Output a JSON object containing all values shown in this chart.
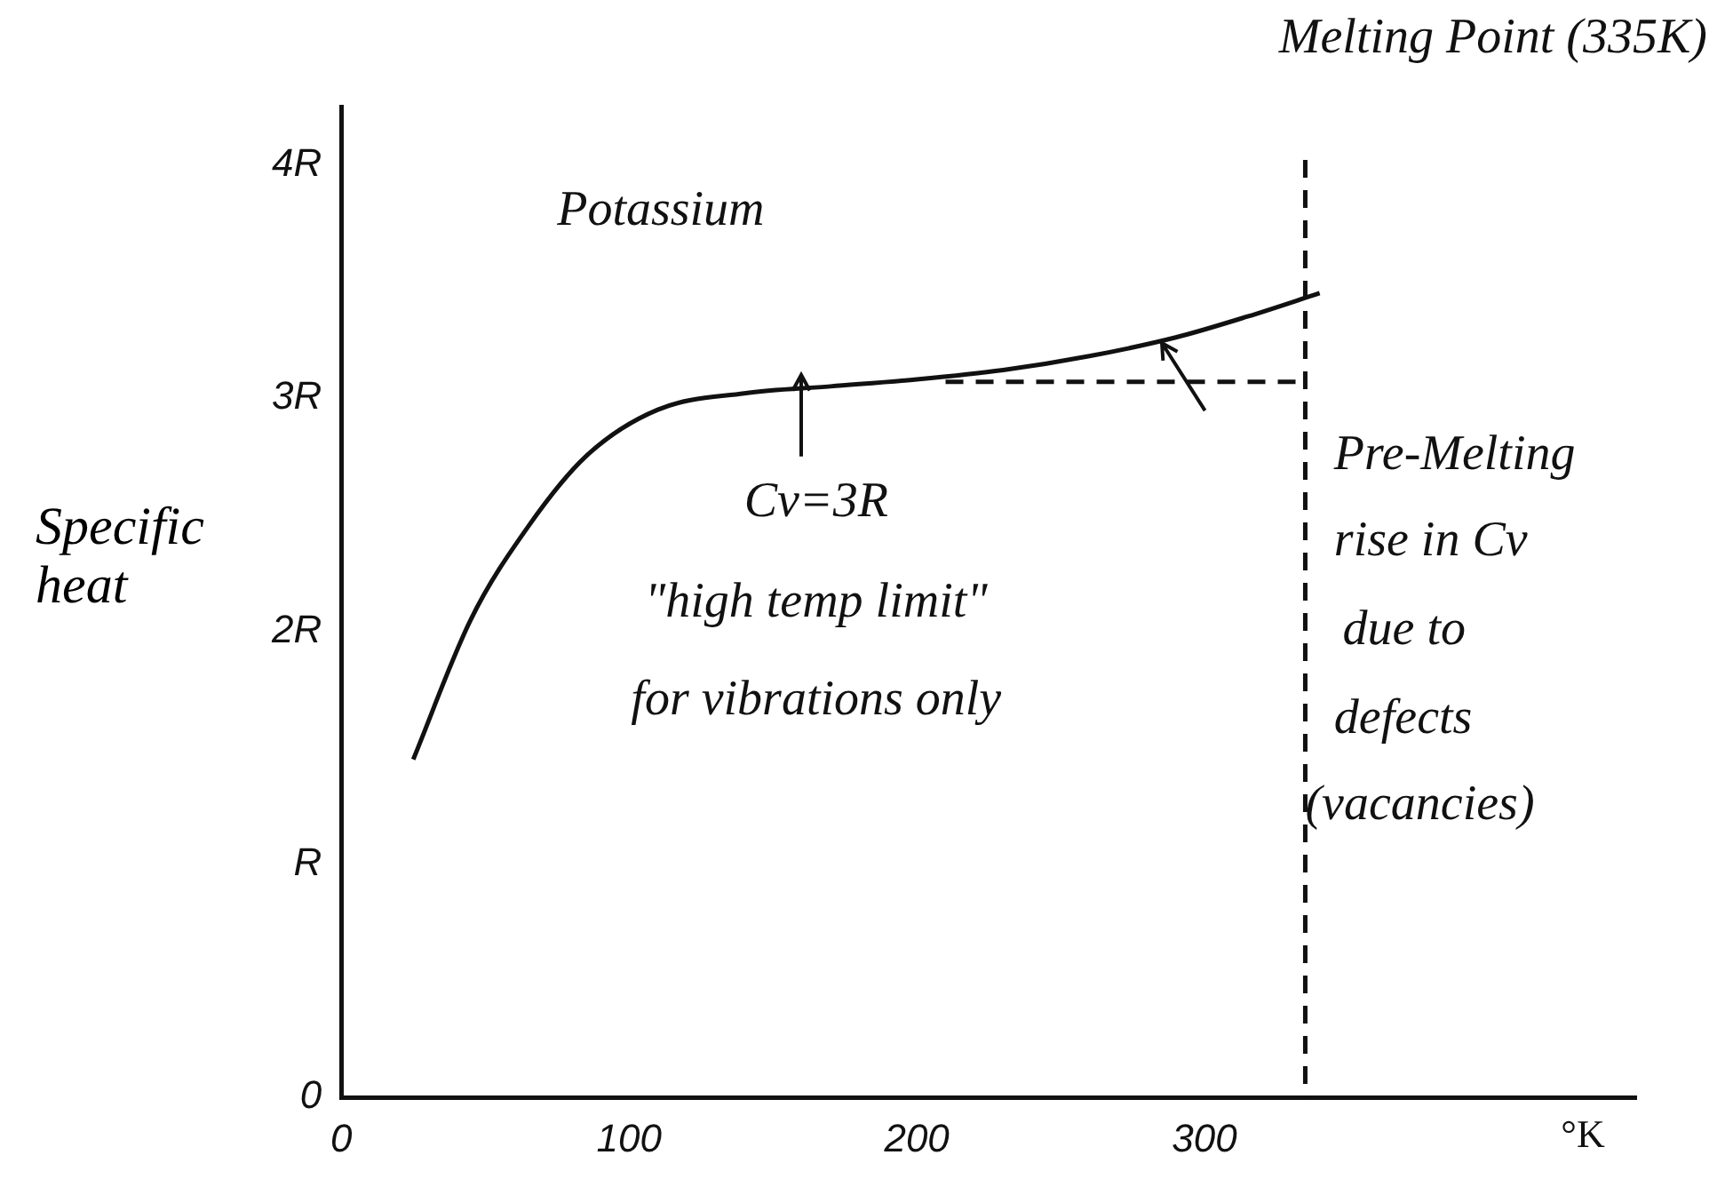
{
  "chart_data": {
    "type": "line",
    "xlabel": "°K",
    "ylabel": "Specific heat",
    "x": [
      25,
      45,
      65,
      85,
      110,
      140,
      170,
      200,
      230,
      260,
      290,
      315,
      340
    ],
    "series": [
      {
        "color": "#111111",
        "values": [
          1.45,
          2.05,
          2.45,
          2.75,
          2.95,
          3.02,
          3.05,
          3.08,
          3.12,
          3.18,
          3.26,
          3.35,
          3.45
        ]
      },
      {
        "type": "line",
        "line_style": "dashed",
        "color": "#111111",
        "x": [
          210,
          335
        ],
        "values": [
          3.07,
          3.07
        ]
      }
    ],
    "xlim": [
      0,
      450
    ],
    "ylim": [
      0,
      4.25
    ],
    "xticks": [
      0,
      100,
      200,
      300
    ],
    "yticks": [
      0,
      {
        "value": 1,
        "label": "R"
      },
      {
        "value": 2,
        "label": "2R"
      },
      {
        "value": 3,
        "label": "3R"
      },
      {
        "value": 4,
        "label": "4R"
      }
    ],
    "ref_lines": [
      {
        "axis": "x",
        "value": 335,
        "label": "Melting Point (335K)",
        "line_style": "dashed"
      }
    ],
    "annotations": [
      "Potassium",
      "Cv=3R",
      "\"high temp limit\"",
      "for vibrations only",
      "Pre-Melting",
      "rise in Cv",
      "due to",
      "defects",
      "(vacancies)"
    ],
    "grid": false,
    "legend": false,
    "marker": "none",
    "line_style": "solid"
  }
}
